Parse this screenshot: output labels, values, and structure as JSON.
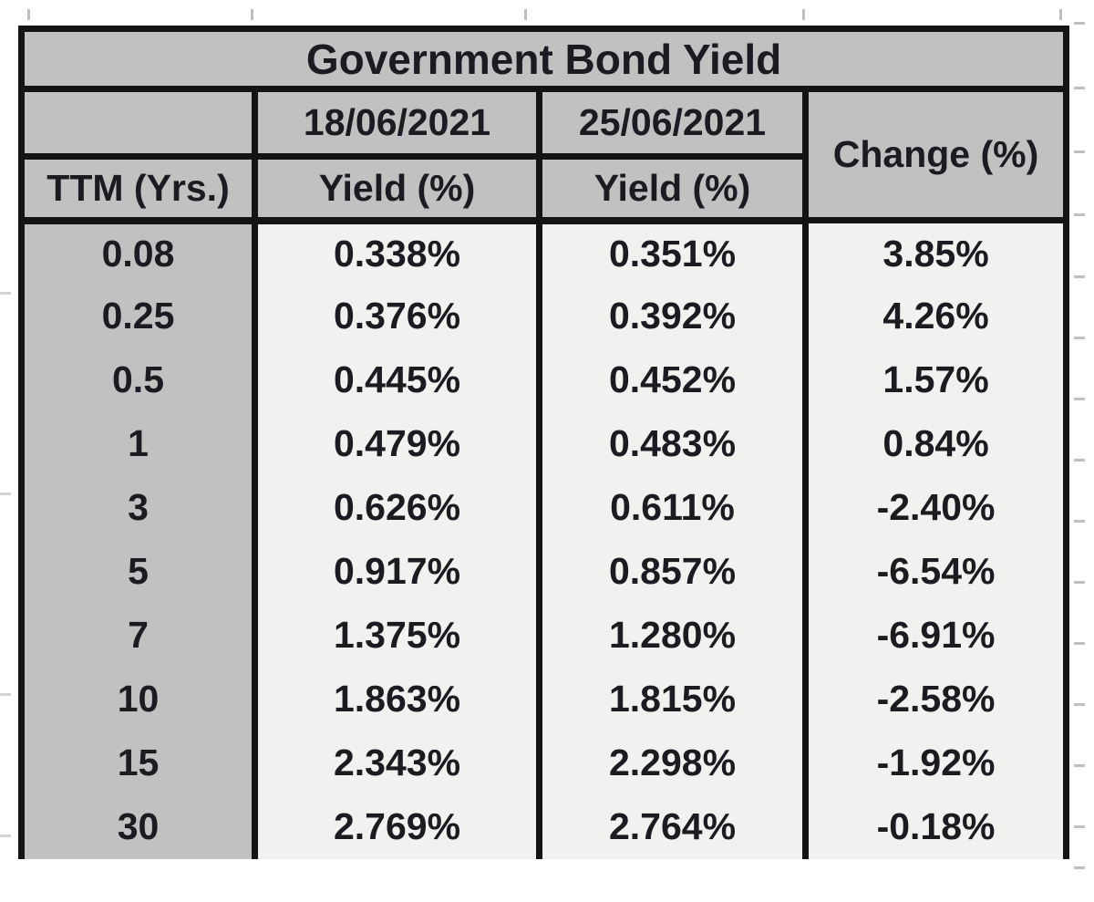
{
  "table": {
    "title": "Government Bond Yield",
    "header": {
      "ttm_label": "TTM (Yrs.)",
      "date1": "18/06/2021",
      "date2": "25/06/2021",
      "yield1_label": "Yield (%)",
      "yield2_label": "Yield (%)",
      "change_label": "Change (%)"
    },
    "rows": [
      {
        "ttm": "0.08",
        "y1": "0.338%",
        "y2": "0.351%",
        "change": "3.85%"
      },
      {
        "ttm": "0.25",
        "y1": "0.376%",
        "y2": "0.392%",
        "change": "4.26%"
      },
      {
        "ttm": "0.5",
        "y1": "0.445%",
        "y2": "0.452%",
        "change": "1.57%"
      },
      {
        "ttm": "1",
        "y1": "0.479%",
        "y2": "0.483%",
        "change": "0.84%"
      },
      {
        "ttm": "3",
        "y1": "0.626%",
        "y2": "0.611%",
        "change": "-2.40%"
      },
      {
        "ttm": "5",
        "y1": "0.917%",
        "y2": "0.857%",
        "change": "-6.54%"
      },
      {
        "ttm": "7",
        "y1": "1.375%",
        "y2": "1.280%",
        "change": "-6.91%"
      },
      {
        "ttm": "10",
        "y1": "1.863%",
        "y2": "1.815%",
        "change": "-2.58%"
      },
      {
        "ttm": "15",
        "y1": "2.343%",
        "y2": "2.298%",
        "change": "-1.92%"
      },
      {
        "ttm": "30",
        "y1": "2.769%",
        "y2": "2.764%",
        "change": "-0.18%"
      }
    ]
  },
  "colors": {
    "header_bg": "#c1c1c1",
    "cell_bg": "#f1f1ef",
    "border": "#141414",
    "text": "#1b1c22",
    "page_bg": "#ffffff"
  },
  "chart_data": {
    "type": "table",
    "title": "Government Bond Yield",
    "columns": [
      "TTM (Yrs.)",
      "18/06/2021 Yield (%)",
      "25/06/2021 Yield (%)",
      "Change (%)"
    ],
    "ttm_years": [
      0.08,
      0.25,
      0.5,
      1,
      3,
      5,
      7,
      10,
      15,
      30
    ],
    "series": [
      {
        "name": "18/06/2021 Yield (%)",
        "values": [
          0.338,
          0.376,
          0.445,
          0.479,
          0.626,
          0.917,
          1.375,
          1.863,
          2.343,
          2.769
        ]
      },
      {
        "name": "25/06/2021 Yield (%)",
        "values": [
          0.351,
          0.392,
          0.452,
          0.483,
          0.611,
          0.857,
          1.28,
          1.815,
          2.298,
          2.764
        ]
      },
      {
        "name": "Change (%)",
        "values": [
          3.85,
          4.26,
          1.57,
          0.84,
          -2.4,
          -6.54,
          -6.91,
          -2.58,
          -1.92,
          -0.18
        ]
      }
    ]
  }
}
